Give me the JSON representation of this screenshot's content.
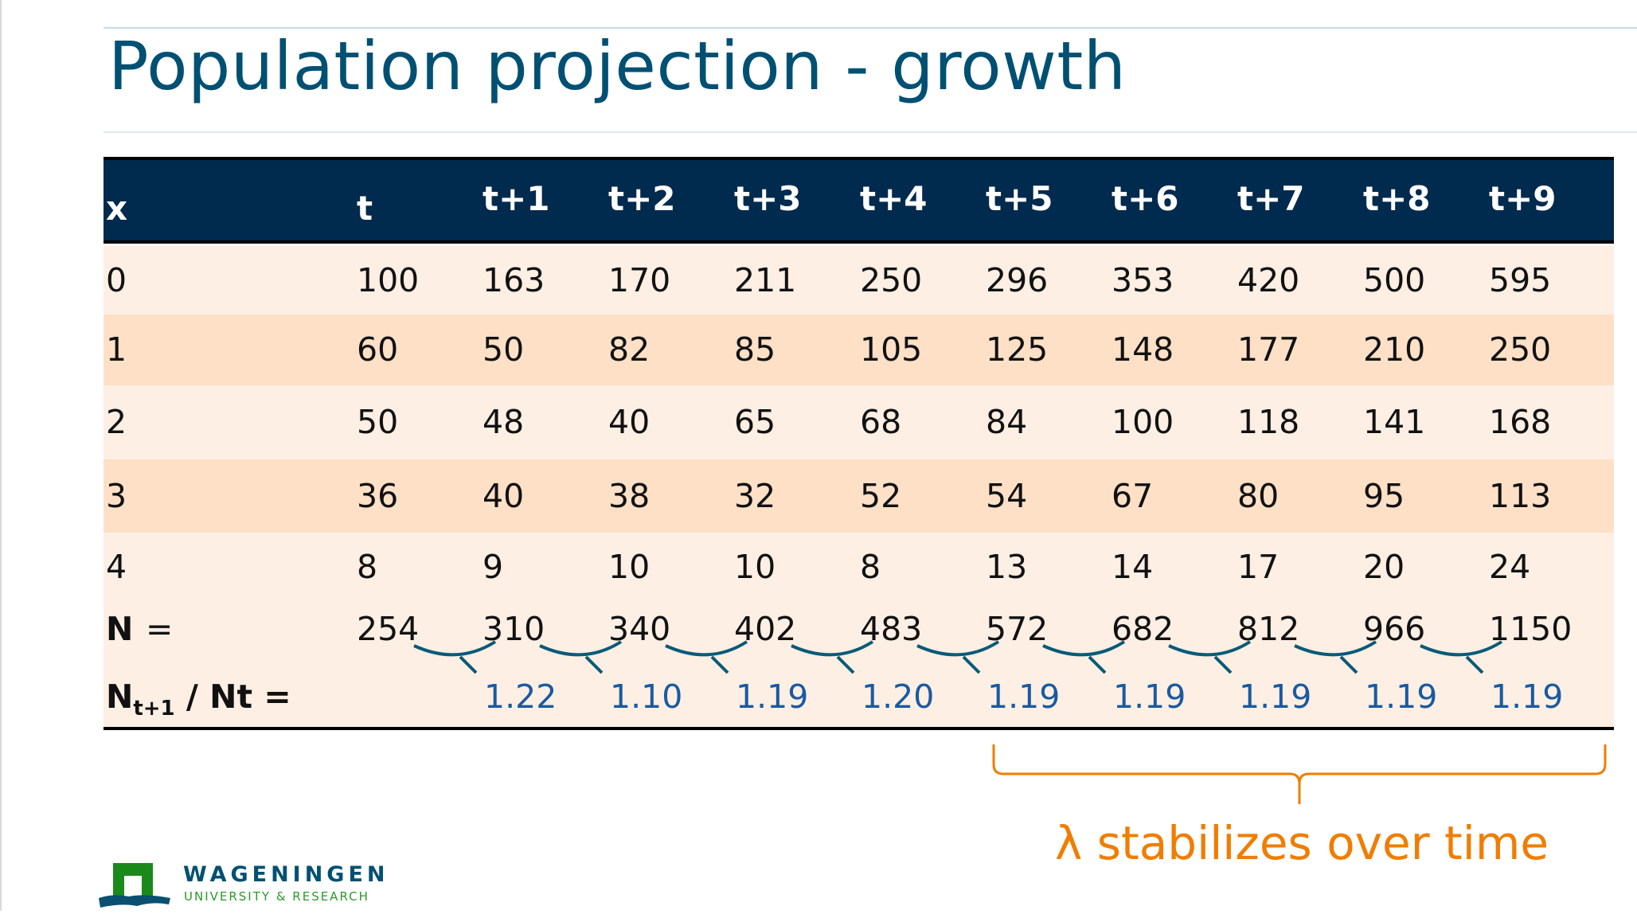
{
  "title": "Population projection - growth",
  "table": {
    "headers": [
      "x",
      "t",
      "t+1",
      "t+2",
      "t+3",
      "t+4",
      "t+5",
      "t+6",
      "t+7",
      "t+8",
      "t+9"
    ],
    "rows": [
      {
        "label": "0",
        "values": [
          "100",
          "163",
          "170",
          "211",
          "250",
          "296",
          "353",
          "420",
          "500",
          "595"
        ]
      },
      {
        "label": "1",
        "values": [
          "60",
          "50",
          "82",
          "85",
          "105",
          "125",
          "148",
          "177",
          "210",
          "250"
        ]
      },
      {
        "label": "2",
        "values": [
          "50",
          "48",
          "40",
          "65",
          "68",
          "84",
          "100",
          "118",
          "141",
          "168"
        ]
      },
      {
        "label": "3",
        "values": [
          "36",
          "40",
          "38",
          "32",
          "52",
          "54",
          "67",
          "80",
          "95",
          "113"
        ]
      },
      {
        "label": "4",
        "values": [
          "8",
          "9",
          "10",
          "10",
          "8",
          "13",
          "14",
          "17",
          "20",
          "24"
        ]
      }
    ],
    "totals": {
      "label_main": "N",
      "label_eq": "=",
      "values": [
        "254",
        "310",
        "340",
        "402",
        "483",
        "572",
        "682",
        "812",
        "966",
        "1150"
      ]
    },
    "ratios": {
      "label_n": "N",
      "label_sub": "t+1",
      "label_rest": " / Nt =",
      "values": [
        "1.22",
        "1.10",
        "1.19",
        "1.20",
        "1.19",
        "1.19",
        "1.19",
        "1.19",
        "1.19"
      ]
    }
  },
  "annotation": "λ stabilizes over time",
  "logo": {
    "line1": "WAGENINGEN",
    "line2": "UNIVERSITY & RESEARCH"
  },
  "colors": {
    "header": "#002a4e",
    "row_light": "#fdefe3",
    "row_dark": "#fde0c6",
    "ratio": "#1a5aa0",
    "accent": "#f07d00",
    "title": "#005073"
  }
}
